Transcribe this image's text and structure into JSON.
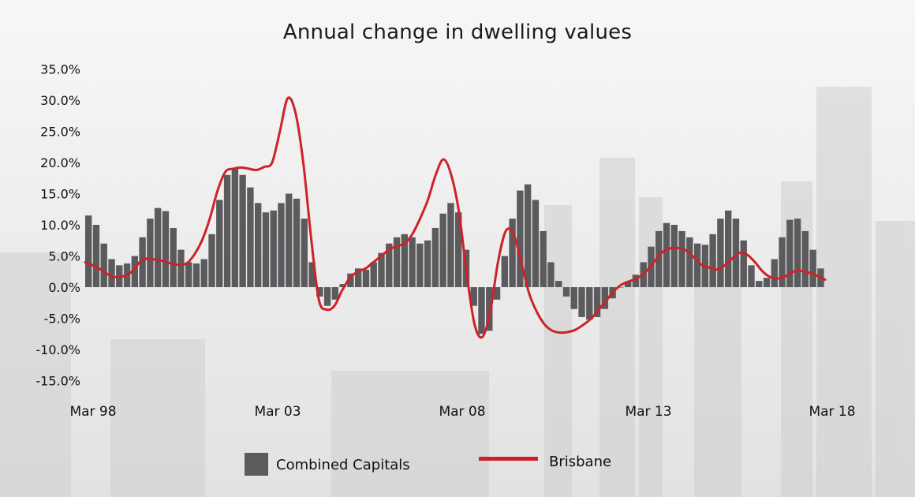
{
  "chart_data": {
    "type": "bar",
    "title": "Annual change in dwelling values",
    "xlabel": "",
    "ylabel": "",
    "y_ticks": [
      "35.0%",
      "30.0%",
      "25.0%",
      "20.0%",
      "15.0%",
      "10.0%",
      "5.0%",
      "0.0%",
      "-5.0%",
      "-10.0%",
      "-15.0%"
    ],
    "ylim": [
      -15,
      35
    ],
    "x_ticks": [
      "Mar 98",
      "Mar 03",
      "Mar 08",
      "Mar 13",
      "Mar 18"
    ],
    "grid": false,
    "legend_position": "bottom",
    "series": [
      {
        "name": "Combined Capitals",
        "kind": "bar",
        "color": "#5b5b5e",
        "values": [
          11.5,
          10,
          7,
          4.5,
          3.5,
          3.8,
          5,
          8,
          11,
          12.7,
          12.2,
          9.5,
          6,
          4,
          3.8,
          4.5,
          8.5,
          14,
          18,
          19,
          18,
          16,
          13.5,
          12,
          12.3,
          13.5,
          15,
          14.2,
          11,
          4,
          -1.5,
          -3,
          -2,
          0.5,
          2.2,
          3,
          2.8,
          4,
          5.5,
          7,
          8,
          8.5,
          8,
          7,
          7.5,
          9.5,
          11.8,
          13.5,
          12,
          6,
          -3,
          -7.5,
          -7,
          -2,
          5,
          11,
          15.5,
          16.5,
          14,
          9,
          4,
          1,
          -1.5,
          -3.5,
          -4.8,
          -5.2,
          -4.8,
          -3.5,
          -1.8,
          0,
          0.9,
          2,
          4,
          6.5,
          9,
          10.3,
          10,
          9,
          8,
          7,
          6.8,
          8.5,
          11,
          12.3,
          11,
          7.5,
          3.5,
          1,
          1.5,
          4.5,
          8,
          10.8,
          11,
          9,
          6,
          3
        ]
      },
      {
        "name": "Brisbane",
        "kind": "line",
        "color": "#cc2229",
        "values": [
          4,
          3.5,
          2.8,
          2,
          1.6,
          1.8,
          2.5,
          4,
          4.6,
          4.4,
          4.2,
          3.8,
          3.6,
          3.8,
          5.2,
          7.5,
          11,
          15.5,
          18.5,
          19,
          19.2,
          19,
          18.8,
          19.3,
          20,
          25,
          30.3,
          28,
          20,
          8,
          -2,
          -3.6,
          -3,
          -0.5,
          1.5,
          2.5,
          3,
          4,
          5,
          6,
          6.6,
          7,
          8.5,
          11,
          14,
          18,
          20.5,
          18,
          12,
          2,
          -6,
          -8,
          -4,
          4,
          9,
          8.5,
          4,
          -1,
          -4,
          -6,
          -7,
          -7.3,
          -7.2,
          -6.8,
          -6,
          -5,
          -3.5,
          -2,
          -0.5,
          0.5,
          1,
          1.5,
          2.5,
          4,
          5.5,
          6.2,
          6.3,
          6,
          5,
          3.7,
          3.2,
          2.8,
          3.4,
          4.5,
          5.5,
          5.2,
          4,
          2.5,
          1.6,
          1.4,
          1.8,
          2.5,
          2.6,
          2.3,
          1.8,
          1.2
        ]
      }
    ]
  }
}
